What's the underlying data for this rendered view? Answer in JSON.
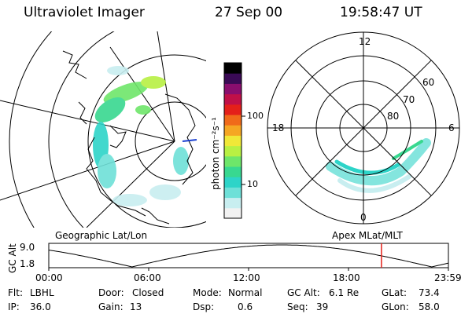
{
  "header": {
    "instrument": "Ultraviolet Imager",
    "date": "27 Sep 00",
    "time": "19:58:47 UT"
  },
  "map_labels": {
    "left": "Geographic Lat/Lon",
    "right": "Apex MLat/MLT"
  },
  "colorbar": {
    "unit_label": "photon cm⁻²s⁻¹",
    "ticks": [
      "100",
      "10"
    ],
    "colors": [
      "#f2f2f2",
      "#c8eef0",
      "#6ee0d8",
      "#2dd4c8",
      "#38d890",
      "#6ee66a",
      "#b8f043",
      "#f0e838",
      "#f5a623",
      "#f06a1a",
      "#e4201a",
      "#c01048",
      "#8a0e6e",
      "#3a0a55",
      "#000000"
    ]
  },
  "polar": {
    "mlt_labels": {
      "top": "12",
      "left": "18",
      "right": "6",
      "bottom": "0"
    },
    "lat_labels": [
      "60",
      "70",
      "80"
    ]
  },
  "altitude_plot": {
    "axis_label": "GC Alt",
    "y_ticks": [
      "9.0",
      "1.8"
    ],
    "x_ticks": [
      "00:00",
      "06:00",
      "12:00",
      "18:00",
      "23:59"
    ],
    "current_marker_hour": 19.98
  },
  "status": {
    "row1": [
      {
        "key": "Flt:",
        "value": "LBHL"
      },
      {
        "key": "Door:",
        "value": "Closed"
      },
      {
        "key": "Mode:",
        "value": "Normal"
      },
      {
        "key": "GC Alt:",
        "value": "6.1 Re"
      },
      {
        "key": "GLat:",
        "value": "73.4"
      }
    ],
    "row2": [
      {
        "key": "IP:",
        "value": "36.0"
      },
      {
        "key": "Gain:",
        "value": "13"
      },
      {
        "key": "Dsp:",
        "value": "0.6"
      },
      {
        "key": "Seq:",
        "value": "39"
      },
      {
        "key": "GLon:",
        "value": "58.0"
      }
    ]
  }
}
